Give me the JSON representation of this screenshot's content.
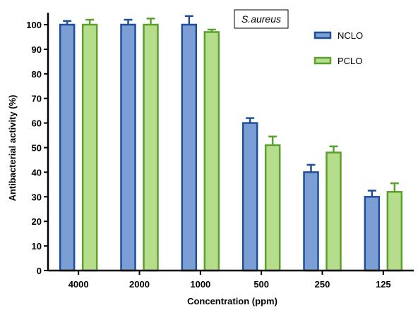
{
  "chart_data": {
    "type": "bar",
    "title": "S.aureus",
    "xlabel": "Concentration (ppm)",
    "ylabel": "Antibacterial activity (%)",
    "ylim": [
      0,
      100
    ],
    "yticks": [
      0,
      10,
      20,
      30,
      40,
      50,
      60,
      70,
      80,
      90,
      100
    ],
    "categories": [
      "4000",
      "2000",
      "1000",
      "500",
      "250",
      "125"
    ],
    "series": [
      {
        "name": "NCLO",
        "values": [
          100,
          100,
          100,
          60,
          40,
          30
        ],
        "error": [
          1.5,
          2,
          3.5,
          2,
          3,
          2.5
        ],
        "fill": "#7b9fd4",
        "stroke": "#1f4e9b"
      },
      {
        "name": "PCLO",
        "values": [
          100,
          100,
          97,
          51,
          48,
          32
        ],
        "error": [
          2,
          2.5,
          1,
          3.5,
          2.5,
          3.5
        ],
        "fill": "#b6dd8c",
        "stroke": "#5aa02c"
      }
    ],
    "legend_position": "top-right",
    "grid": false
  }
}
